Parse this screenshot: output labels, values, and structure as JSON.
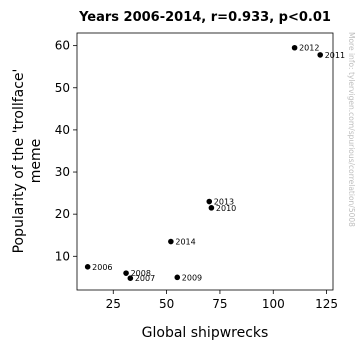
{
  "chart_data": {
    "type": "scatter",
    "title": "Years 2006-2014, r=0.933, p<0.01",
    "xlabel": "Global shipwrecks",
    "ylabel_lines": [
      "Popularity of the 'trollface'",
      "meme"
    ],
    "xlim": [
      8,
      128
    ],
    "ylim": [
      2,
      63
    ],
    "xticks": [
      25,
      50,
      75,
      100,
      125
    ],
    "yticks": [
      10,
      20,
      30,
      40,
      50,
      60
    ],
    "grid": false,
    "points": [
      {
        "label": "2006",
        "x": 13,
        "y": 7.5
      },
      {
        "label": "2007",
        "x": 33,
        "y": 4.8
      },
      {
        "label": "2008",
        "x": 31,
        "y": 6.0
      },
      {
        "label": "2009",
        "x": 55,
        "y": 5.0
      },
      {
        "label": "2010",
        "x": 71,
        "y": 21.5
      },
      {
        "label": "2011",
        "x": 122,
        "y": 57.8
      },
      {
        "label": "2012",
        "x": 110,
        "y": 59.5
      },
      {
        "label": "2013",
        "x": 70,
        "y": 23.0
      },
      {
        "label": "2014",
        "x": 52,
        "y": 13.5
      }
    ]
  },
  "watermark": "More info: tylervigen.com/spurious/correlation/5008",
  "colors": {
    "points": "#000000",
    "watermark": "#bdbdbd"
  }
}
